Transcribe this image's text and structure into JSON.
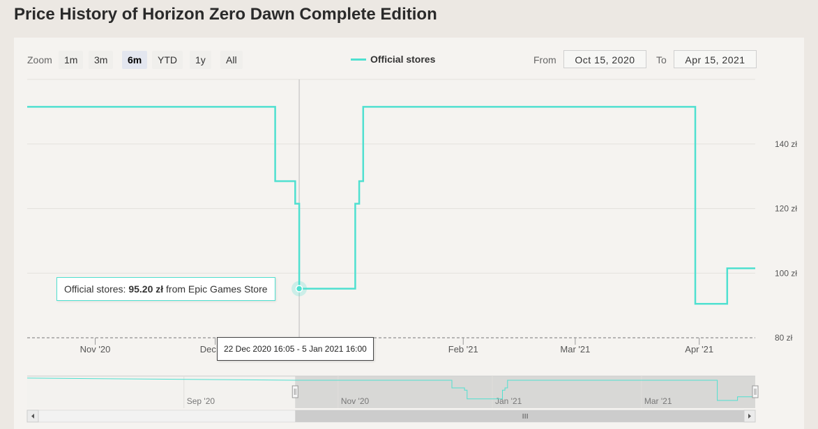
{
  "title": "Price History of Horizon Zero Dawn Complete Edition",
  "toolbar": {
    "zoom_label": "Zoom",
    "zoom_buttons": [
      "1m",
      "3m",
      "6m",
      "YTD",
      "1y",
      "All"
    ],
    "active_zoom": "6m",
    "from_label": "From",
    "from_value": "Oct 15, 2020",
    "to_label": "To",
    "to_value": "Apr 15, 2021"
  },
  "tooltip": {
    "series": "Official stores",
    "price": "95.20 zł",
    "store_text": "from Epic Games Store",
    "date_range": "22 Dec 2020 16:05 - 5 Jan 2021 16:00"
  },
  "chart_data": {
    "type": "line",
    "step": true,
    "series": [
      {
        "name": "Official stores",
        "color": "#4fe0d0",
        "points": [
          [
            "2020-10-15",
            151.5
          ],
          [
            "2020-12-16",
            151.5
          ],
          [
            "2020-12-16",
            128.5
          ],
          [
            "2020-12-21",
            128.5
          ],
          [
            "2020-12-21",
            121.5
          ],
          [
            "2020-12-22",
            121.5
          ],
          [
            "2020-12-22",
            95.2
          ],
          [
            "2021-01-05",
            95.2
          ],
          [
            "2021-01-05",
            121.5
          ],
          [
            "2021-01-06",
            121.5
          ],
          [
            "2021-01-06",
            128.5
          ],
          [
            "2021-01-07",
            128.5
          ],
          [
            "2021-01-07",
            151.5
          ],
          [
            "2021-03-31",
            151.5
          ],
          [
            "2021-03-31",
            90.5
          ],
          [
            "2021-04-08",
            90.5
          ],
          [
            "2021-04-08",
            101.5
          ],
          [
            "2021-04-15",
            101.5
          ]
        ]
      }
    ],
    "y_axis": {
      "min": 80,
      "max": 160,
      "ticks": [
        80,
        100,
        120,
        140
      ],
      "unit": "zł",
      "position": "right"
    },
    "x_axis": {
      "range": [
        "2020-10-15",
        "2021-04-15"
      ],
      "ticks": [
        {
          "label": "Nov '20",
          "date": "2020-11-01"
        },
        {
          "label": "Dec '20",
          "date": "2020-12-01"
        },
        {
          "label": "Feb '21",
          "date": "2021-02-01"
        },
        {
          "label": "Mar '21",
          "date": "2021-03-01"
        },
        {
          "label": "Apr '21",
          "date": "2021-04-01"
        }
      ]
    },
    "grid": true,
    "legend_position": "top-center",
    "hover_point": {
      "date": "2020-12-22",
      "value": 95.2
    },
    "navigator": {
      "range": [
        "2020-07-01",
        "2021-04-15"
      ],
      "selected": [
        "2020-10-15",
        "2021-04-15"
      ],
      "ticks": [
        {
          "label": "Sep '20",
          "date": "2020-09-01"
        },
        {
          "label": "Nov '20",
          "date": "2020-11-01"
        },
        {
          "label": "Jan '21",
          "date": "2021-01-01"
        },
        {
          "label": "Mar '21",
          "date": "2021-03-01"
        }
      ]
    }
  }
}
